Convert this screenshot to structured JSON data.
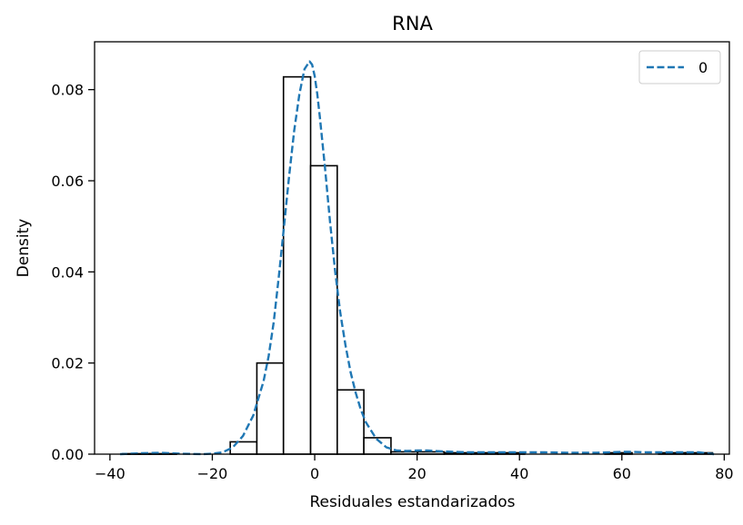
{
  "chart_data": {
    "type": "bar",
    "title": "RNA",
    "xlabel": "Residuales estandarizados",
    "ylabel": "Density",
    "xlim": [
      -43,
      81
    ],
    "ylim": [
      0,
      0.0905
    ],
    "x_ticks": [
      -40,
      -20,
      0,
      20,
      40,
      60,
      80
    ],
    "y_ticks": [
      0.0,
      0.02,
      0.04,
      0.06,
      0.08
    ],
    "x_tick_labels": [
      "−40",
      "−20",
      "0",
      "20",
      "40",
      "60",
      "80"
    ],
    "y_tick_labels": [
      "0.00",
      "0.02",
      "0.04",
      "0.06",
      "0.08"
    ],
    "grid": false,
    "legend": {
      "placement": "top-right",
      "entries": [
        "0"
      ]
    },
    "histogram": {
      "bin_edges": [
        -37.5,
        -32.2,
        -27.0,
        -21.8,
        -16.5,
        -11.3,
        -6.1,
        -0.8,
        4.4,
        9.6,
        14.9,
        20.1,
        25.3,
        30.6,
        35.8,
        41.0,
        46.3,
        51.5,
        56.7,
        62.0,
        67.2,
        72.4,
        77.7
      ],
      "densities": [
        0.0001,
        0.0001,
        0.0,
        0.0,
        0.0027,
        0.02,
        0.0828,
        0.0633,
        0.0141,
        0.0036,
        0.0005,
        0.0005,
        0.0003,
        0.0003,
        0.0003,
        0.0,
        0.0,
        0.0,
        0.0003,
        0.0,
        0.0003,
        0.0003
      ],
      "fill": "#ffffff",
      "edgecolor": "#000000"
    },
    "series": [
      {
        "name": "0",
        "style": "dashed",
        "color": "#1f77b4",
        "x": [
          -38,
          -34,
          -30,
          -26,
          -22,
          -20,
          -18,
          -16,
          -14,
          -12,
          -10,
          -9,
          -8,
          -7,
          -6,
          -5,
          -4,
          -3,
          -2,
          -1,
          -0.5,
          0,
          0.5,
          1,
          2,
          3,
          4,
          5,
          6,
          7,
          8,
          9,
          10,
          12,
          14,
          16,
          18,
          20,
          22,
          25,
          30,
          35,
          40,
          45,
          50,
          55,
          60,
          62,
          65,
          70,
          75,
          78
        ],
        "y": [
          0.0,
          0.0002,
          0.0003,
          0.0001,
          0.0,
          0.0001,
          0.0004,
          0.0015,
          0.004,
          0.0085,
          0.016,
          0.0215,
          0.029,
          0.039,
          0.05,
          0.061,
          0.071,
          0.079,
          0.0845,
          0.0862,
          0.0855,
          0.083,
          0.079,
          0.074,
          0.063,
          0.051,
          0.04,
          0.031,
          0.024,
          0.018,
          0.0135,
          0.0098,
          0.007,
          0.0034,
          0.0015,
          0.0008,
          0.0007,
          0.0008,
          0.0008,
          0.0006,
          0.0004,
          0.0004,
          0.0004,
          0.0004,
          0.0003,
          0.0003,
          0.0005,
          0.0005,
          0.0004,
          0.0004,
          0.0004,
          0.0
        ]
      }
    ]
  }
}
